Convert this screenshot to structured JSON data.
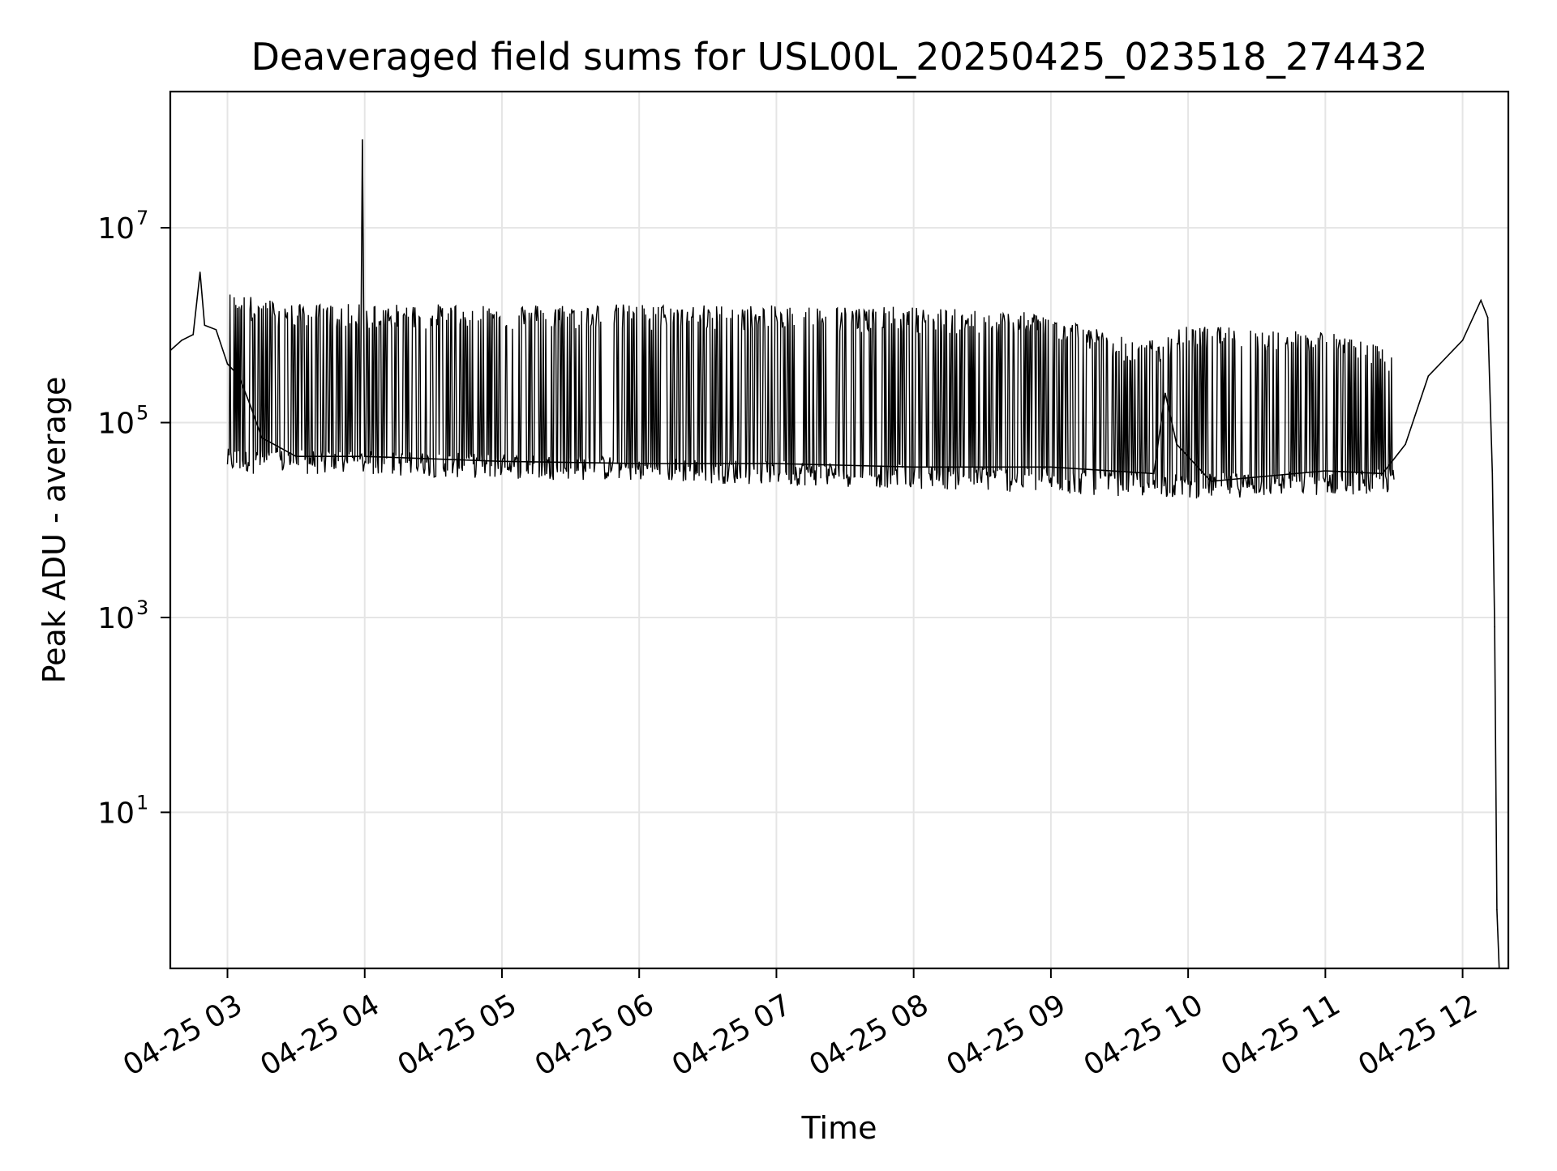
{
  "chart_data": {
    "type": "line",
    "title": "Deaveraged field sums for USL00L_20250425_023518_274432",
    "xlabel": "Time",
    "ylabel": "Peak ADU - average",
    "y_scale": "log",
    "ylim": [
      0.25,
      250000000
    ],
    "xlim": [
      "2025-04-25T02:35:00",
      "2025-04-25T12:20:00"
    ],
    "grid": true,
    "line_color": "#000000",
    "grid_color": "#e5e5e5",
    "x_ticks": [
      {
        "label": "04-25 03",
        "value": "2025-04-25T03:00:00"
      },
      {
        "label": "04-25 04",
        "value": "2025-04-25T04:00:00"
      },
      {
        "label": "04-25 05",
        "value": "2025-04-25T05:00:00"
      },
      {
        "label": "04-25 06",
        "value": "2025-04-25T06:00:00"
      },
      {
        "label": "04-25 07",
        "value": "2025-04-25T07:00:00"
      },
      {
        "label": "04-25 08",
        "value": "2025-04-25T08:00:00"
      },
      {
        "label": "04-25 09",
        "value": "2025-04-25T09:00:00"
      },
      {
        "label": "04-25 10",
        "value": "2025-04-25T10:00:00"
      },
      {
        "label": "04-25 11",
        "value": "2025-04-25T11:00:00"
      },
      {
        "label": "04-25 12",
        "value": "2025-04-25T12:00:00"
      }
    ],
    "y_ticks": [
      {
        "base": "10",
        "exp": "1",
        "value": 10
      },
      {
        "base": "10",
        "exp": "3",
        "value": 1000
      },
      {
        "base": "10",
        "exp": "5",
        "value": 100000
      },
      {
        "base": "10",
        "exp": "7",
        "value": 10000000
      }
    ],
    "series": [
      {
        "points": [
          [
            "2025-04-25T02:35:00",
            550000
          ],
          [
            "2025-04-25T02:40:00",
            700000
          ],
          [
            "2025-04-25T02:45:00",
            800000
          ],
          [
            "2025-04-25T02:48:00",
            3500000
          ],
          [
            "2025-04-25T02:50:00",
            1000000
          ],
          [
            "2025-04-25T02:55:00",
            900000
          ],
          [
            "2025-04-25T03:00:00",
            400000
          ],
          [
            "2025-04-25T03:05:00",
            300000
          ],
          [
            "2025-04-25T03:10:00",
            150000
          ],
          [
            "2025-04-25T03:15:00",
            70000
          ],
          [
            "2025-04-25T03:30:00",
            45000
          ],
          [
            "2025-04-25T03:58:00",
            45000
          ],
          [
            "2025-04-25T03:59:00",
            80000000
          ],
          [
            "2025-04-25T04:00:00",
            45000
          ],
          [
            "2025-04-25T05:00:00",
            40000
          ],
          [
            "2025-04-25T06:00:00",
            38000
          ],
          [
            "2025-04-25T07:00:00",
            38000
          ],
          [
            "2025-04-25T08:00:00",
            35000
          ],
          [
            "2025-04-25T09:00:00",
            35000
          ],
          [
            "2025-04-25T09:45:00",
            30000
          ],
          [
            "2025-04-25T09:50:00",
            200000
          ],
          [
            "2025-04-25T09:55:00",
            60000
          ],
          [
            "2025-04-25T10:10:00",
            25000
          ],
          [
            "2025-04-25T11:00:00",
            32000
          ],
          [
            "2025-04-25T11:25:00",
            30000
          ],
          [
            "2025-04-25T11:35:00",
            60000
          ],
          [
            "2025-04-25T11:45:00",
            300000
          ],
          [
            "2025-04-25T12:00:00",
            700000
          ],
          [
            "2025-04-25T12:08:00",
            1800000
          ],
          [
            "2025-04-25T12:11:00",
            1200000
          ],
          [
            "2025-04-25T12:13:00",
            30000
          ],
          [
            "2025-04-25T12:14:00",
            800
          ],
          [
            "2025-04-25T12:15:00",
            1
          ],
          [
            "2025-04-25T12:16:00",
            0.25
          ]
        ],
        "envelope": {
          "description_free": true,
          "upper": [
            [
              "2025-04-25T03:00:00",
              2000000
            ],
            [
              "2025-04-25T03:30:00",
              1500000
            ],
            [
              "2025-04-25T04:00:00",
              1500000
            ],
            [
              "2025-04-25T06:00:00",
              1500000
            ],
            [
              "2025-04-25T08:00:00",
              1400000
            ],
            [
              "2025-04-25T09:00:00",
              1200000
            ],
            [
              "2025-04-25T09:40:00",
              600000
            ],
            [
              "2025-04-25T10:00:00",
              900000
            ],
            [
              "2025-04-25T11:00:00",
              800000
            ],
            [
              "2025-04-25T11:30:00",
              500000
            ]
          ],
          "lower": [
            [
              "2025-04-25T03:00:00",
              40000
            ],
            [
              "2025-04-25T04:00:00",
              38000
            ],
            [
              "2025-04-25T06:00:00",
              33000
            ],
            [
              "2025-04-25T08:00:00",
              28000
            ],
            [
              "2025-04-25T10:00:00",
              22000
            ],
            [
              "2025-04-25T11:30:00",
              25000
            ]
          ]
        }
      }
    ]
  }
}
